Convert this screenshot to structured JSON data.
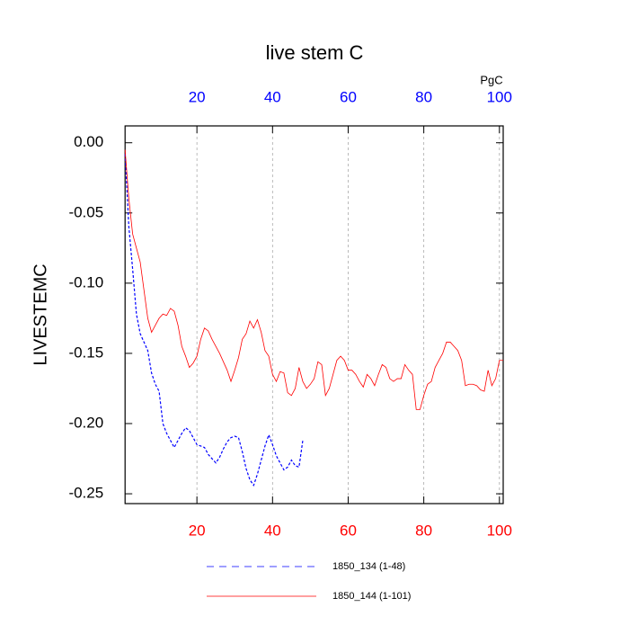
{
  "chart_data": {
    "type": "line",
    "title": "live stem C",
    "ylabel": "LIVESTEMC",
    "x2label": "PgC",
    "xlim": [
      1,
      101
    ],
    "ylim": [
      -0.257,
      0.012
    ],
    "xticks": [
      20,
      40,
      60,
      80,
      100
    ],
    "x2ticks": [
      20,
      40,
      60,
      80,
      100
    ],
    "yticks": [
      {
        "value": 0,
        "label": "0.00"
      },
      {
        "value": -0.05,
        "label": "-0.05"
      },
      {
        "value": -0.1,
        "label": "-0.10"
      },
      {
        "value": -0.15,
        "label": "-0.15"
      },
      {
        "value": -0.2,
        "label": "-0.20"
      },
      {
        "value": -0.25,
        "label": "-0.25"
      }
    ],
    "xtick_color": "#ff0000",
    "x2tick_color": "#0000ff",
    "grid": true,
    "series": [
      {
        "name": "1850_134 (1-48)",
        "color": "#0000ff",
        "style": "dashed",
        "x": [
          1,
          2,
          3,
          4,
          5,
          6,
          7,
          8,
          9,
          10,
          11,
          12,
          13,
          14,
          15,
          16,
          17,
          18,
          19,
          20,
          21,
          22,
          23,
          24,
          25,
          26,
          27,
          28,
          29,
          30,
          31,
          32,
          33,
          34,
          35,
          36,
          37,
          38,
          39,
          40,
          41,
          42,
          43,
          44,
          45,
          46,
          47,
          48
        ],
        "values": [
          -0.008,
          -0.06,
          -0.09,
          -0.122,
          -0.136,
          -0.142,
          -0.148,
          -0.164,
          -0.172,
          -0.177,
          -0.2,
          -0.207,
          -0.212,
          -0.217,
          -0.212,
          -0.207,
          -0.203,
          -0.205,
          -0.21,
          -0.215,
          -0.216,
          -0.217,
          -0.222,
          -0.225,
          -0.228,
          -0.224,
          -0.218,
          -0.213,
          -0.21,
          -0.209,
          -0.21,
          -0.22,
          -0.232,
          -0.24,
          -0.244,
          -0.236,
          -0.226,
          -0.216,
          -0.208,
          -0.215,
          -0.223,
          -0.228,
          -0.233,
          -0.231,
          -0.226,
          -0.23,
          -0.231,
          -0.212
        ]
      },
      {
        "name": "1850_144 (1-101)",
        "color": "#ff0000",
        "style": "solid",
        "x": [
          1,
          2,
          3,
          4,
          5,
          6,
          7,
          8,
          9,
          10,
          11,
          12,
          13,
          14,
          15,
          16,
          17,
          18,
          19,
          20,
          21,
          22,
          23,
          24,
          25,
          26,
          27,
          28,
          29,
          30,
          31,
          32,
          33,
          34,
          35,
          36,
          37,
          38,
          39,
          40,
          41,
          42,
          43,
          44,
          45,
          46,
          47,
          48,
          49,
          50,
          51,
          52,
          53,
          54,
          55,
          56,
          57,
          58,
          59,
          60,
          61,
          62,
          63,
          64,
          65,
          66,
          67,
          68,
          69,
          70,
          71,
          72,
          73,
          74,
          75,
          76,
          77,
          78,
          79,
          80,
          81,
          82,
          83,
          84,
          85,
          86,
          87,
          88,
          89,
          90,
          91,
          92,
          93,
          94,
          95,
          96,
          97,
          98,
          99,
          100,
          101
        ],
        "values": [
          -0.005,
          -0.04,
          -0.065,
          -0.075,
          -0.085,
          -0.105,
          -0.125,
          -0.135,
          -0.13,
          -0.125,
          -0.122,
          -0.123,
          -0.118,
          -0.12,
          -0.13,
          -0.145,
          -0.152,
          -0.16,
          -0.157,
          -0.152,
          -0.14,
          -0.132,
          -0.134,
          -0.14,
          -0.145,
          -0.15,
          -0.156,
          -0.162,
          -0.17,
          -0.162,
          -0.153,
          -0.14,
          -0.136,
          -0.127,
          -0.132,
          -0.126,
          -0.135,
          -0.148,
          -0.152,
          -0.165,
          -0.17,
          -0.163,
          -0.164,
          -0.178,
          -0.18,
          -0.175,
          -0.16,
          -0.17,
          -0.175,
          -0.172,
          -0.168,
          -0.156,
          -0.158,
          -0.18,
          -0.175,
          -0.165,
          -0.155,
          -0.152,
          -0.155,
          -0.162,
          -0.162,
          -0.165,
          -0.17,
          -0.174,
          -0.165,
          -0.168,
          -0.173,
          -0.165,
          -0.158,
          -0.16,
          -0.168,
          -0.17,
          -0.168,
          -0.168,
          -0.158,
          -0.162,
          -0.165,
          -0.19,
          -0.19,
          -0.18,
          -0.172,
          -0.17,
          -0.16,
          -0.155,
          -0.15,
          -0.142,
          -0.142,
          -0.145,
          -0.148,
          -0.155,
          -0.173,
          -0.172,
          -0.172,
          -0.173,
          -0.176,
          -0.177,
          -0.162,
          -0.173,
          -0.168,
          -0.155,
          -0.155
        ]
      }
    ]
  }
}
